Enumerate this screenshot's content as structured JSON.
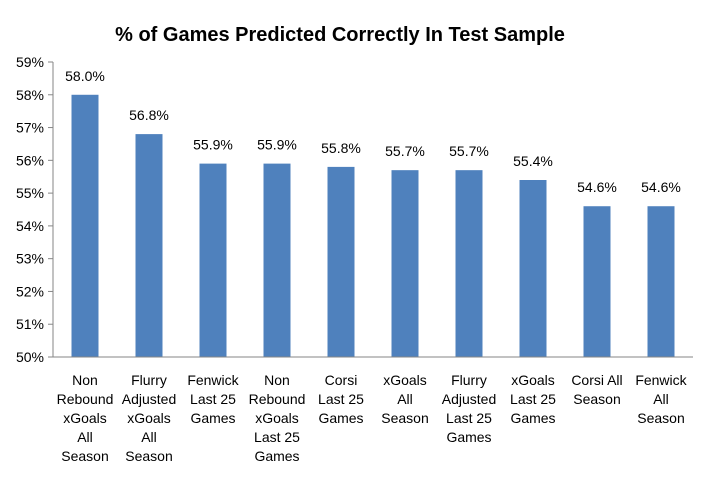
{
  "chart_data": {
    "type": "bar",
    "title": "% of Games Predicted Correctly In Test Sample",
    "xlabel": "",
    "ylabel": "",
    "ylim": [
      50,
      59
    ],
    "yticks": [
      "50%",
      "51%",
      "52%",
      "53%",
      "54%",
      "55%",
      "56%",
      "57%",
      "58%",
      "59%"
    ],
    "grid": false,
    "legend": "none",
    "bar_color": "#4F81BD",
    "categories": [
      [
        "Non",
        "Rebound",
        "xGoals",
        "All",
        "Season"
      ],
      [
        "Flurry",
        "Adjusted",
        "xGoals",
        "All",
        "Season"
      ],
      [
        "Fenwick",
        "Last 25",
        "Games"
      ],
      [
        "Non",
        "Rebound",
        "xGoals",
        "Last 25",
        "Games"
      ],
      [
        "Corsi",
        "Last 25",
        "Games"
      ],
      [
        "xGoals",
        "All",
        "Season"
      ],
      [
        "Flurry",
        "Adjusted",
        "Last 25",
        "Games"
      ],
      [
        "xGoals",
        "Last 25",
        "Games"
      ],
      [
        "Corsi  All",
        "Season"
      ],
      [
        "Fenwick",
        "All",
        "Season"
      ]
    ],
    "values": [
      58.0,
      56.8,
      55.9,
      55.9,
      55.8,
      55.7,
      55.7,
      55.4,
      54.6,
      54.6
    ],
    "data_labels": [
      "58.0%",
      "56.8%",
      "55.9%",
      "55.9%",
      "55.8%",
      "55.7%",
      "55.7%",
      "55.4%",
      "54.6%",
      "54.6%"
    ]
  }
}
